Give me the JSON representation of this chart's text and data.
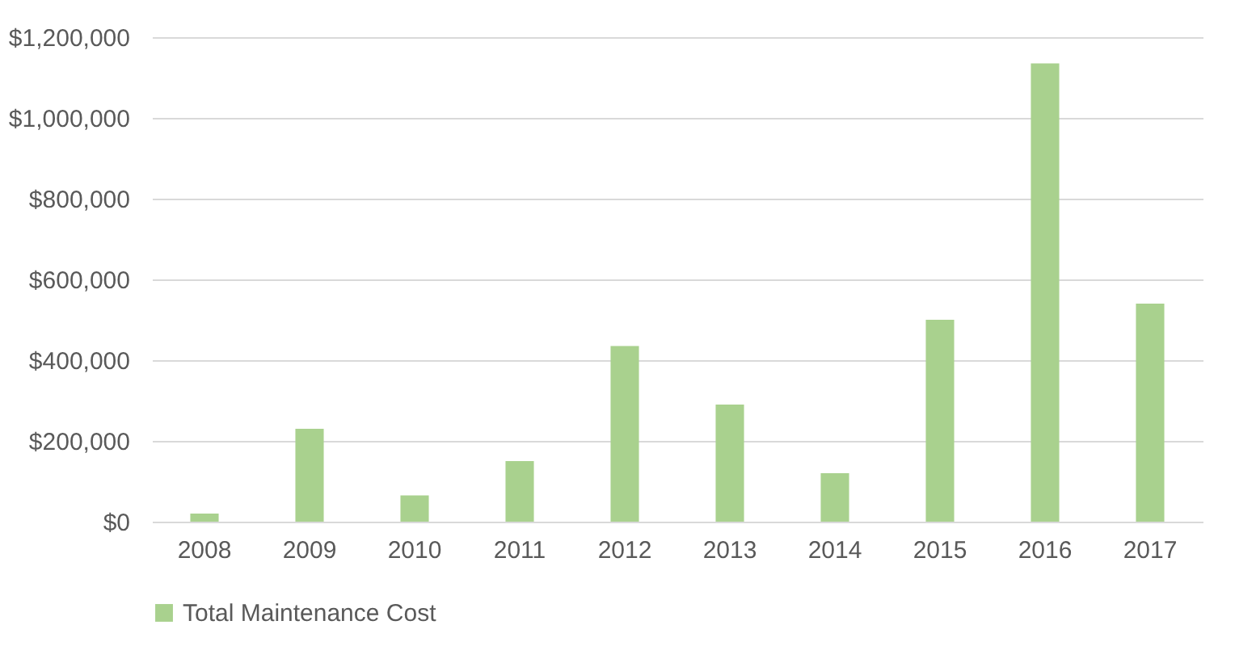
{
  "chart_data": {
    "type": "bar",
    "categories": [
      "2008",
      "2009",
      "2010",
      "2011",
      "2012",
      "2013",
      "2014",
      "2015",
      "2016",
      "2017"
    ],
    "series": [
      {
        "name": "Total Maintenance Cost",
        "color": "#a9d18e",
        "values": [
          20000,
          230000,
          65000,
          150000,
          435000,
          290000,
          120000,
          500000,
          1135000,
          540000
        ]
      }
    ],
    "ylim": [
      0,
      1200000
    ],
    "yticks": [
      {
        "value": 0,
        "label": "$0"
      },
      {
        "value": 200000,
        "label": "$200,000"
      },
      {
        "value": 400000,
        "label": "$400,000"
      },
      {
        "value": 600000,
        "label": "$600,000"
      },
      {
        "value": 800000,
        "label": "$800,000"
      },
      {
        "value": 1000000,
        "label": "$1,000,000"
      },
      {
        "value": 1200000,
        "label": "$1,200,000"
      }
    ],
    "grid": "y",
    "legend": "bottom"
  }
}
